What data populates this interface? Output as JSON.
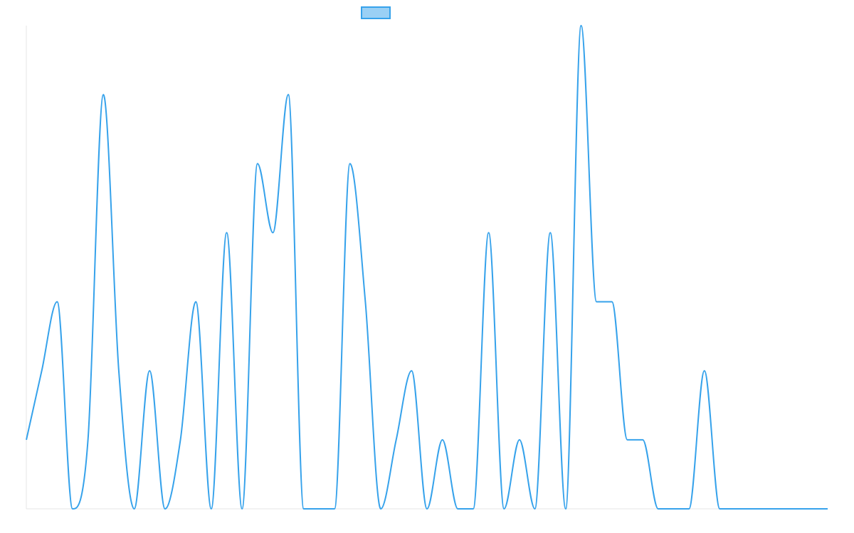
{
  "chart_data": {
    "type": "line",
    "title": "",
    "xlabel": "",
    "ylabel": "",
    "x": [
      0,
      1,
      2,
      3,
      4,
      5,
      6,
      7,
      8,
      9,
      10,
      11,
      12,
      13,
      14,
      15,
      16,
      17,
      18,
      19,
      20,
      21,
      22,
      23,
      24,
      25,
      26,
      27,
      28,
      29,
      30,
      31,
      32,
      33,
      34,
      35,
      36,
      37,
      38,
      39,
      40,
      41,
      42,
      43,
      44,
      45,
      46,
      47,
      48,
      49,
      50,
      51,
      52
    ],
    "series": [
      {
        "values": [
          1,
          2,
          3,
          0,
          1,
          6,
          2,
          0,
          2,
          0,
          1,
          3,
          0,
          4,
          0,
          5,
          4,
          6,
          0,
          0,
          0,
          5,
          3,
          0,
          1,
          2,
          0,
          1,
          0,
          0,
          4,
          0,
          1,
          0,
          4,
          0,
          7,
          3,
          3,
          1,
          1,
          0,
          0,
          0,
          2,
          0,
          0,
          0,
          0,
          0,
          0,
          0,
          0
        ],
        "color": "#36a2eb",
        "fill": "#9ad0f5"
      }
    ],
    "ylim": [
      0,
      7
    ],
    "legend": {
      "position": "top",
      "label": ""
    },
    "grid": false,
    "smooth": true
  }
}
